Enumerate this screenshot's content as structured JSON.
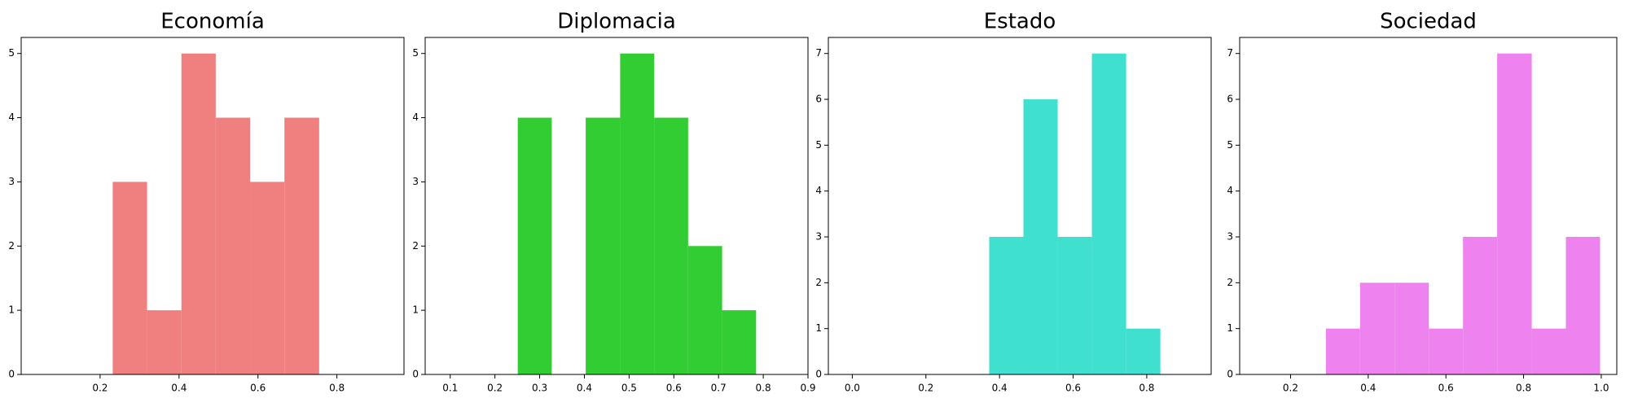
{
  "chart_data": [
    {
      "type": "histogram",
      "title": "Economía",
      "color": "#f08080",
      "bins": [
        0.232,
        0.319,
        0.406,
        0.493,
        0.58,
        0.667,
        0.755
      ],
      "values": [
        3,
        1,
        5,
        4,
        3,
        4
      ],
      "xlim": [
        0.0,
        0.97
      ],
      "xticks": [
        0.2,
        0.4,
        0.6,
        0.8
      ],
      "ylim": [
        0,
        5.25
      ],
      "yticks": [
        0,
        1,
        2,
        3,
        4,
        5
      ]
    },
    {
      "type": "histogram",
      "title": "Diplomacia",
      "color": "#32cd32",
      "bins": [
        0.251,
        0.327,
        0.403,
        0.48,
        0.556,
        0.632,
        0.708,
        0.784
      ],
      "values": [
        4,
        0,
        4,
        5,
        4,
        2,
        1
      ],
      "xlim": [
        0.044,
        0.9
      ],
      "xticks": [
        0.1,
        0.2,
        0.3,
        0.4,
        0.5,
        0.6,
        0.7,
        0.8,
        0.9
      ],
      "ylim": [
        0,
        5.25
      ],
      "yticks": [
        0,
        1,
        2,
        3,
        4,
        5
      ]
    },
    {
      "type": "histogram",
      "title": "Estado",
      "color": "#40e0d0",
      "bins": [
        0.372,
        0.465,
        0.558,
        0.651,
        0.744,
        0.837
      ],
      "values": [
        3,
        6,
        3,
        7,
        1
      ],
      "xlim": [
        -0.065,
        0.975
      ],
      "xticks": [
        {
          "value": 0,
          "label": "0.0"
        },
        0.2,
        0.4,
        0.6,
        0.8
      ],
      "ylim": [
        0,
        7.35
      ],
      "yticks": [
        0,
        1,
        2,
        3,
        4,
        5,
        6,
        7
      ]
    },
    {
      "type": "histogram",
      "title": "Sociedad",
      "color": "#ee82ee",
      "bins": [
        0.291,
        0.379,
        0.468,
        0.556,
        0.644,
        0.732,
        0.821,
        0.909,
        0.997
      ],
      "values": [
        1,
        2,
        2,
        1,
        3,
        7,
        1,
        3
      ],
      "xlim": [
        0.069,
        1.04
      ],
      "xticks": [
        0.2,
        0.4,
        0.6,
        0.8,
        {
          "value": 1,
          "label": "1.0"
        }
      ],
      "ylim": [
        0,
        7.35
      ],
      "yticks": [
        0,
        1,
        2,
        3,
        4,
        5,
        6,
        7
      ]
    }
  ]
}
